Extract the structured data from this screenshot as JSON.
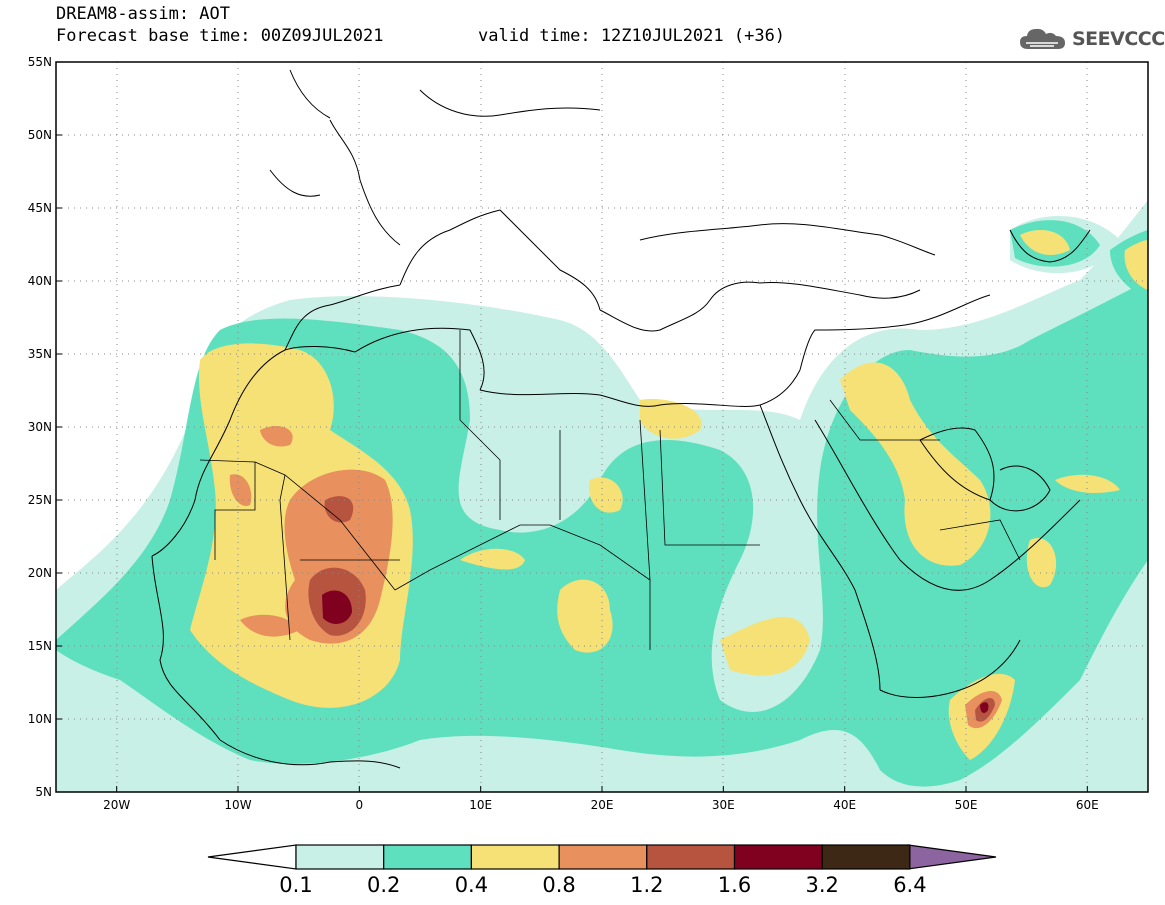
{
  "header": {
    "title": "DREAM8-assim: AOT",
    "base_time": "Forecast base time: 00Z09JUL2021",
    "valid_time": "valid time: 12Z10JUL2021 (+36)",
    "logo_text": "SEEVCCC",
    "logo_icon": "cloud-logo-icon"
  },
  "map": {
    "lon_range": [
      -25,
      65
    ],
    "lat_range": [
      5,
      55
    ],
    "lat_ticks": [
      "55N",
      "50N",
      "45N",
      "40N",
      "35N",
      "30N",
      "25N",
      "20N",
      "15N",
      "10N",
      "5N"
    ],
    "lon_ticks": [
      "20W",
      "10W",
      "0",
      "10E",
      "20E",
      "30E",
      "40E",
      "50E",
      "60E"
    ],
    "grid": true
  },
  "colorbar": {
    "labels": [
      "0.1",
      "0.2",
      "0.4",
      "0.8",
      "1.2",
      "1.6",
      "3.2",
      "6.4"
    ],
    "colors": [
      "#c8f0e6",
      "#5ee0be",
      "#f5e176",
      "#e8905e",
      "#b75440",
      "#800020",
      "#3c2814",
      "#8c64a0"
    ]
  }
}
